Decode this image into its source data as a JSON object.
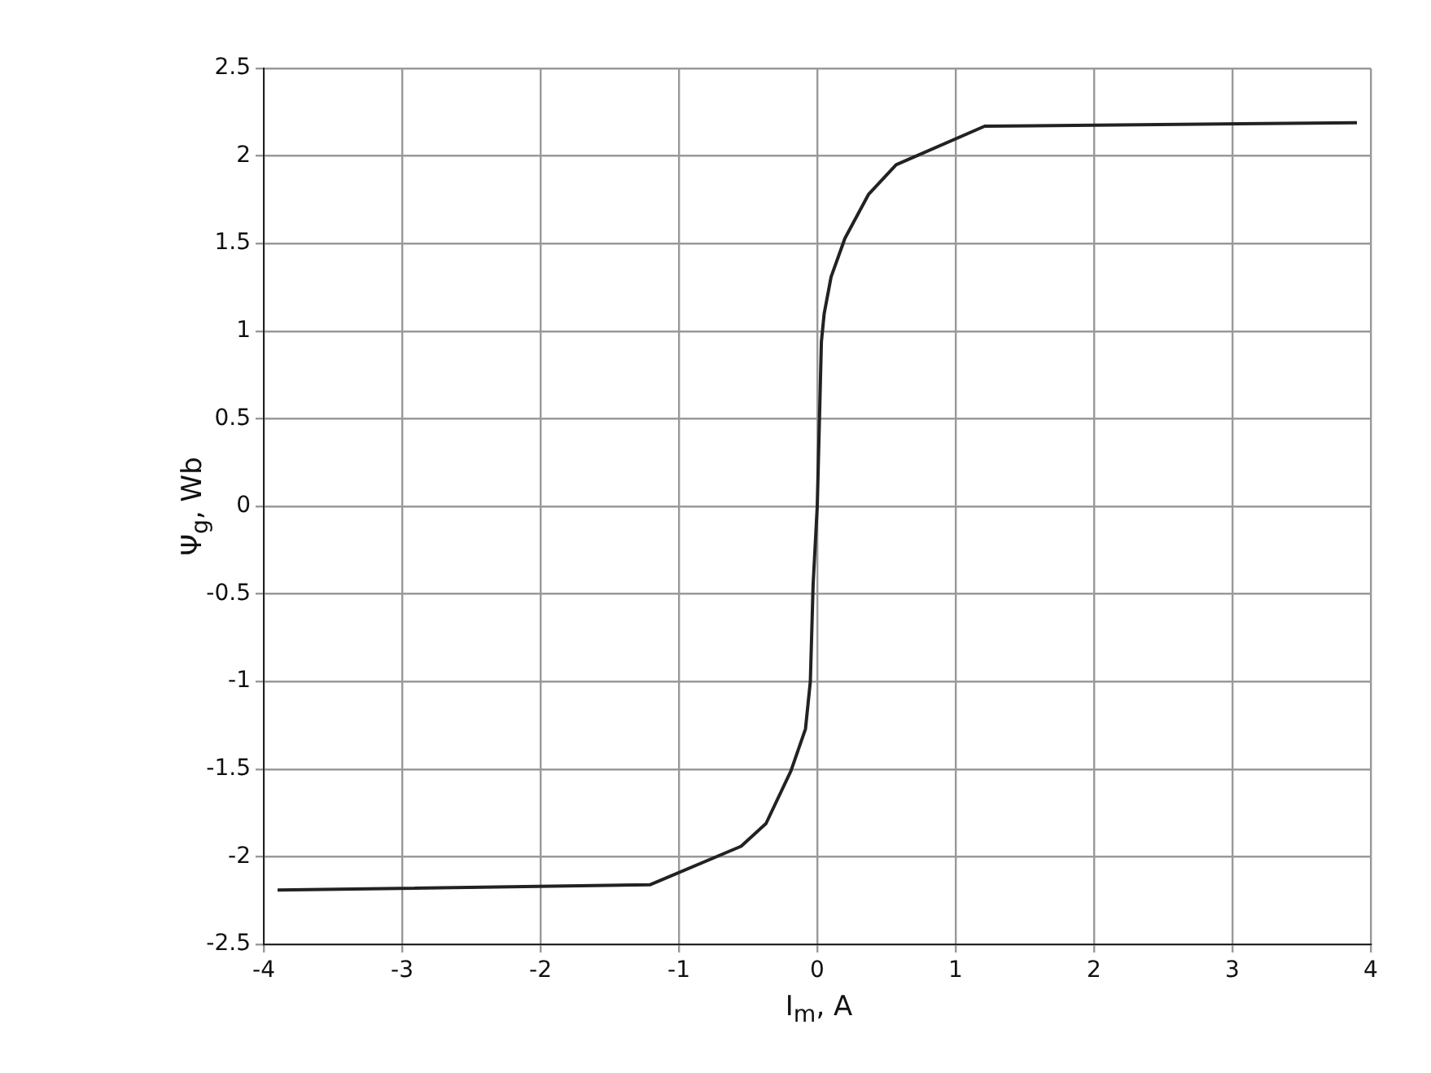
{
  "chart_data": {
    "type": "line",
    "xlabel": "I$_{m}$, A",
    "ylabel": "Ψ$_{g}$, Wb",
    "legend": false,
    "grid": true,
    "marker": "none",
    "line_style": "solid",
    "xlim": [
      -4,
      4
    ],
    "xticks": [
      -4,
      -3,
      -2,
      -1,
      0,
      1,
      2,
      3,
      4
    ],
    "ylim": [
      -2.5,
      2.5
    ],
    "yticks": [
      -2.5,
      -2,
      -1.5,
      -1,
      -0.5,
      0,
      0.5,
      1,
      1.5,
      2,
      2.5
    ],
    "series": [
      {
        "color": "#222222",
        "x": [
          -3.9,
          -1.21,
          -0.55,
          -0.37,
          -0.19,
          -0.085,
          -0.05,
          -0.03,
          0,
          0.03,
          0.05,
          0.1,
          0.2,
          0.37,
          0.57,
          1.21,
          3.9
        ],
        "values": [
          -2.19,
          -2.16,
          -1.94,
          -1.81,
          -1.51,
          -1.27,
          -1.0,
          -0.45,
          0,
          0.94,
          1.1,
          1.31,
          1.53,
          1.78,
          1.95,
          2.17,
          2.19
        ]
      }
    ]
  }
}
